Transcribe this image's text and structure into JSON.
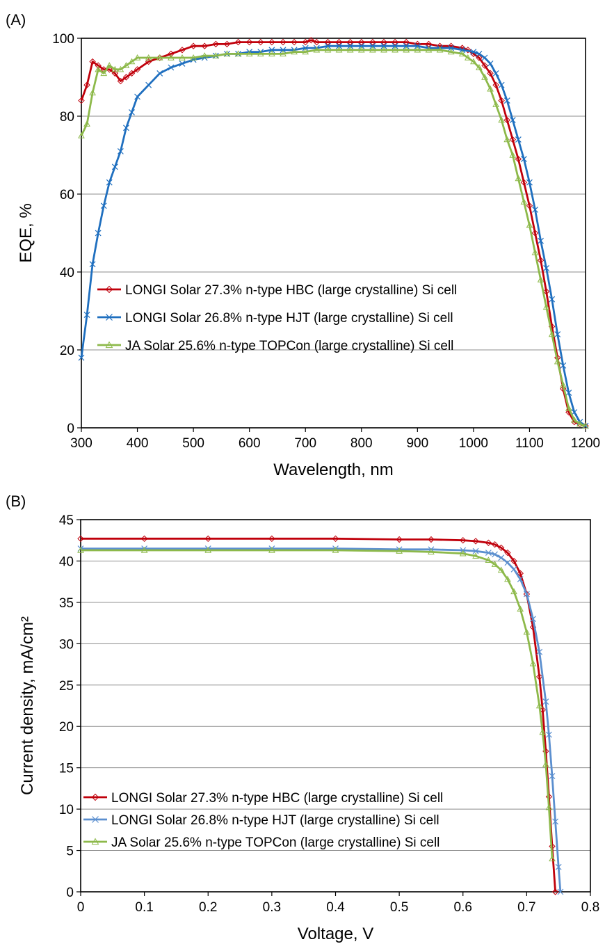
{
  "chart_data": [
    {
      "panel_label": "(A)",
      "type": "line",
      "title": "",
      "xlabel": "Wavelength, nm",
      "ylabel": "EQE, %",
      "xlim": [
        300,
        1200
      ],
      "ylim": [
        0,
        100
      ],
      "xticks": [
        300,
        400,
        500,
        600,
        700,
        800,
        900,
        1000,
        1100,
        1200
      ],
      "yticks": [
        0,
        20,
        40,
        60,
        80,
        100
      ],
      "grid": "horizontal",
      "legend_position": "center-left",
      "series": [
        {
          "name": "LONGI Solar 27.3% n-type HBC (large crystalline) Si cell",
          "color": "#c0000b",
          "marker": "diamond",
          "x": [
            300,
            310,
            320,
            330,
            340,
            350,
            360,
            370,
            380,
            390,
            400,
            420,
            440,
            460,
            480,
            500,
            520,
            540,
            560,
            580,
            600,
            620,
            640,
            660,
            680,
            700,
            710,
            720,
            740,
            760,
            780,
            800,
            820,
            840,
            860,
            880,
            900,
            920,
            940,
            960,
            980,
            990,
            1000,
            1010,
            1020,
            1030,
            1040,
            1050,
            1060,
            1070,
            1080,
            1090,
            1100,
            1110,
            1120,
            1130,
            1140,
            1150,
            1160,
            1170,
            1180,
            1190,
            1200
          ],
          "y": [
            84,
            88,
            94,
            93,
            92,
            92,
            91,
            89,
            90,
            91,
            92,
            94,
            95,
            96,
            97,
            98,
            98,
            98.5,
            98.5,
            99,
            99,
            99,
            99,
            99,
            99,
            99,
            99.5,
            99,
            99,
            99,
            99,
            99,
            99,
            99,
            99,
            99,
            98.5,
            98.5,
            98,
            98,
            97.5,
            97,
            96,
            95,
            93,
            91,
            88,
            84,
            79,
            74,
            69,
            63,
            57,
            50,
            43,
            35,
            26,
            18,
            10,
            4,
            1.5,
            1,
            0.5
          ]
        },
        {
          "name": "LONGI Solar 26.8% n-type HJT (large crystalline) Si cell",
          "color": "#1f6fbf",
          "marker": "x",
          "x": [
            300,
            310,
            320,
            330,
            340,
            350,
            360,
            370,
            380,
            390,
            400,
            420,
            440,
            460,
            480,
            500,
            520,
            540,
            560,
            580,
            600,
            620,
            640,
            660,
            680,
            700,
            720,
            740,
            760,
            780,
            800,
            820,
            840,
            860,
            880,
            900,
            920,
            940,
            960,
            980,
            1000,
            1010,
            1020,
            1030,
            1040,
            1050,
            1060,
            1070,
            1080,
            1090,
            1100,
            1110,
            1120,
            1130,
            1140,
            1150,
            1160,
            1170,
            1180,
            1190,
            1200
          ],
          "y": [
            18,
            29,
            42,
            50,
            57,
            63,
            67,
            71,
            77,
            81,
            85,
            88,
            91,
            92.5,
            93.5,
            94.5,
            95,
            95.5,
            96,
            96,
            96.5,
            96.5,
            97,
            97,
            97,
            97.5,
            97.5,
            98,
            98,
            98,
            98,
            98,
            98,
            98,
            98,
            98,
            97.5,
            97.5,
            97.5,
            97,
            96.5,
            96,
            95,
            93.5,
            91,
            88,
            84,
            79,
            74,
            69,
            63,
            56,
            48,
            41,
            33,
            24,
            16,
            9,
            4,
            1.5,
            0.5
          ]
        },
        {
          "name": "JA Solar 25.6% n-type TOPCon (large crystalline) Si cell",
          "color": "#8db94a",
          "marker": "triangle",
          "x": [
            300,
            310,
            320,
            330,
            340,
            350,
            360,
            370,
            380,
            390,
            400,
            420,
            440,
            460,
            480,
            500,
            520,
            540,
            560,
            580,
            600,
            620,
            640,
            660,
            680,
            700,
            720,
            740,
            760,
            780,
            800,
            820,
            840,
            860,
            880,
            900,
            920,
            940,
            960,
            980,
            990,
            1000,
            1010,
            1020,
            1030,
            1040,
            1050,
            1060,
            1070,
            1080,
            1090,
            1100,
            1110,
            1120,
            1130,
            1140,
            1150,
            1160,
            1170,
            1180,
            1190,
            1200
          ],
          "y": [
            75,
            78,
            86,
            92,
            91,
            93,
            92,
            92,
            93,
            94,
            95,
            95,
            95,
            95,
            95,
            95,
            95.5,
            95.5,
            96,
            96,
            96,
            96,
            96,
            96,
            96.5,
            96.5,
            97,
            97,
            97,
            97,
            97,
            97,
            97,
            97,
            97,
            97,
            97,
            97,
            96.5,
            96,
            95,
            94,
            92.5,
            90,
            87,
            83,
            79,
            74,
            70,
            64,
            58,
            52,
            45,
            38,
            31,
            24,
            17,
            11,
            5,
            2,
            1,
            0.5
          ]
        }
      ]
    },
    {
      "panel_label": "(B)",
      "type": "line",
      "title": "",
      "xlabel": "Voltage, V",
      "ylabel": "Current density, mA/cm²",
      "xlim": [
        0,
        0.8
      ],
      "ylim": [
        0,
        45
      ],
      "xticks": [
        0,
        0.1,
        0.2,
        0.3,
        0.4,
        0.5,
        0.6,
        0.7,
        0.8
      ],
      "yticks": [
        0,
        5,
        10,
        15,
        20,
        25,
        30,
        35,
        40,
        45
      ],
      "grid": "horizontal",
      "legend_position": "bottom-left",
      "series": [
        {
          "name": "LONGI Solar 27.3% n-type HBC (large crystalline) Si cell",
          "color": "#c0000b",
          "marker": "diamond",
          "x": [
            0,
            0.1,
            0.2,
            0.3,
            0.4,
            0.5,
            0.55,
            0.6,
            0.62,
            0.64,
            0.65,
            0.66,
            0.67,
            0.68,
            0.69,
            0.7,
            0.71,
            0.72,
            0.725,
            0.73,
            0.735,
            0.74,
            0.745
          ],
          "y": [
            42.7,
            42.7,
            42.7,
            42.7,
            42.7,
            42.6,
            42.6,
            42.5,
            42.4,
            42.2,
            42,
            41.6,
            41,
            40,
            38.5,
            36,
            32,
            26,
            22,
            17,
            11.5,
            5.5,
            0
          ]
        },
        {
          "name": "LONGI Solar 26.8% n-type HJT (large crystalline) Si cell",
          "color": "#5b8fcf",
          "marker": "x",
          "x": [
            0,
            0.1,
            0.2,
            0.3,
            0.4,
            0.5,
            0.55,
            0.6,
            0.62,
            0.64,
            0.65,
            0.66,
            0.67,
            0.68,
            0.69,
            0.7,
            0.71,
            0.72,
            0.73,
            0.735,
            0.74,
            0.745,
            0.75,
            0.753
          ],
          "y": [
            41.5,
            41.5,
            41.5,
            41.5,
            41.5,
            41.4,
            41.4,
            41.3,
            41.2,
            41,
            40.8,
            40.4,
            39.8,
            39,
            37.8,
            36,
            33,
            29,
            23,
            19,
            14,
            8.5,
            3,
            0
          ]
        },
        {
          "name": "JA Solar 25.6% n-type TOPCon (large crystalline) Si cell",
          "color": "#8db94a",
          "marker": "triangle",
          "x": [
            0,
            0.1,
            0.2,
            0.3,
            0.4,
            0.5,
            0.55,
            0.6,
            0.62,
            0.64,
            0.65,
            0.66,
            0.67,
            0.68,
            0.69,
            0.7,
            0.71,
            0.72,
            0.725,
            0.73,
            0.735,
            0.74
          ],
          "y": [
            41.3,
            41.3,
            41.3,
            41.3,
            41.3,
            41.2,
            41.1,
            40.9,
            40.6,
            40.1,
            39.6,
            38.9,
            37.8,
            36.3,
            34.2,
            31.4,
            27.6,
            22.5,
            19.3,
            15.4,
            10.2,
            4
          ]
        }
      ]
    }
  ]
}
